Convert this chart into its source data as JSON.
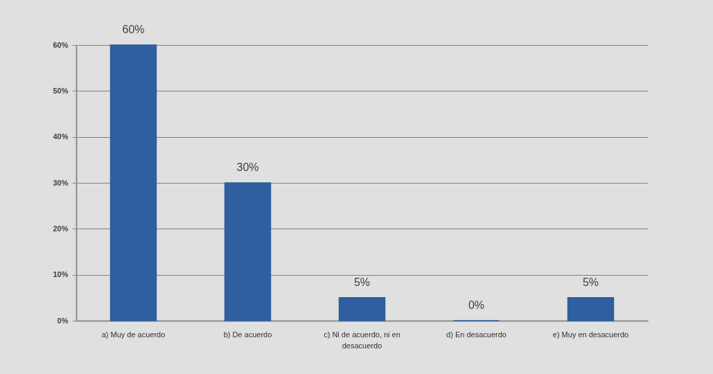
{
  "chart_data": {
    "type": "bar",
    "categories": [
      "a) Muy de acuerdo",
      "b) De acuerdo",
      "c) Ni de acuerdo, ni en desacuerdo",
      "d) En desacuerdo",
      "e) Muy en desacuerdo"
    ],
    "values": [
      60,
      30,
      5,
      0,
      5
    ],
    "color": "#2f5f9e",
    "value_labels": [
      "60%",
      "30%",
      "5%",
      "0%",
      "5%"
    ],
    "ylim": [
      0,
      60
    ],
    "yticks": [
      {
        "value": 0,
        "label": "0%"
      },
      {
        "value": 10,
        "label": "10%"
      },
      {
        "value": 20,
        "label": "20%"
      },
      {
        "value": 30,
        "label": "30%"
      },
      {
        "value": 40,
        "label": "40%"
      },
      {
        "value": 50,
        "label": "50%"
      },
      {
        "value": 60,
        "label": "60%"
      }
    ],
    "grid": "y"
  }
}
